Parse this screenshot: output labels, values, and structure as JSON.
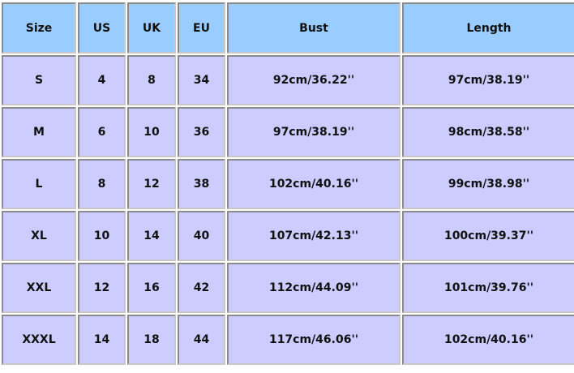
{
  "colors": {
    "header": "#99ccff",
    "body": "#ccccff"
  },
  "headers": [
    "Size",
    "US",
    "UK",
    "EU",
    "Bust",
    "Length"
  ],
  "rows": [
    [
      "S",
      "4",
      "8",
      "34",
      "92cm/36.22''",
      "97cm/38.19''"
    ],
    [
      "M",
      "6",
      "10",
      "36",
      "97cm/38.19''",
      "98cm/38.58''"
    ],
    [
      "L",
      "8",
      "12",
      "38",
      "102cm/40.16''",
      "99cm/38.98''"
    ],
    [
      "XL",
      "10",
      "14",
      "40",
      "107cm/42.13''",
      "100cm/39.37''"
    ],
    [
      "XXL",
      "12",
      "16",
      "42",
      "112cm/44.09''",
      "101cm/39.76''"
    ],
    [
      "XXXL",
      "14",
      "18",
      "44",
      "117cm/46.06''",
      "102cm/40.16''"
    ]
  ]
}
